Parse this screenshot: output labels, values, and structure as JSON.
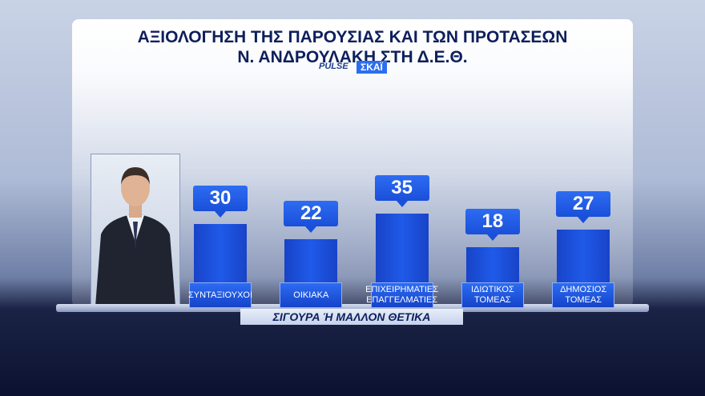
{
  "chart_data": {
    "type": "bar",
    "title": "ΑΞΙΟΛΟΓΗΣΗ ΤΗΣ ΠΑΡΟΥΣΙΑΣ ΚΑΙ ΤΩΝ ΠΡΟΤΑΣΕΩΝ\nΝ. ΑΝΔΡΟΥΛΑΚΗ ΣΤΗ Δ.Ε.Θ.",
    "logos": [
      "PULSE",
      "ΣΚΑΪ"
    ],
    "x_label": "ΣΙΓΟΥΡΑ Ή ΜΑΛΛΟΝ ΘΕΤΙΚΑ",
    "categories": [
      "ΣΥΝΤΑΞΙΟΥΧΟΙ",
      "ΟΙΚΙΑΚΑ",
      "ΕΠΙΧΕΙΡΗΜΑΤΙΕΣ\nΕΠΑΓΓΕΛΜΑΤΙΕΣ",
      "ΙΔΙΩΤΙΚΟΣ\nΤΟΜΕΑΣ",
      "ΔΗΜΟΣΙΟΣ\nΤΟΜΕΑΣ"
    ],
    "values": [
      30,
      22,
      35,
      18,
      27
    ],
    "color": "#1f5ae8"
  }
}
